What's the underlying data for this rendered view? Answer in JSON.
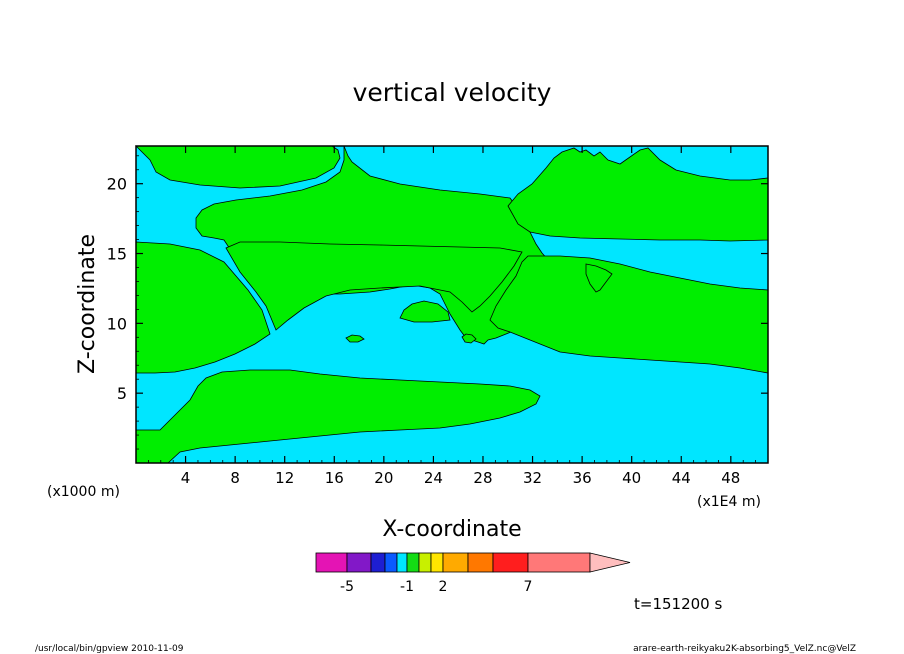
{
  "chart_data": {
    "type": "heatmap",
    "title": "vertical velocity",
    "xlabel": "X-coordinate",
    "ylabel": "Z-coordinate",
    "x_unit_left": "(x1000 m)",
    "x_unit_right": "(x1E4 m)",
    "x_ticks": [
      "4",
      "8",
      "12",
      "16",
      "20",
      "24",
      "28",
      "32",
      "36",
      "40",
      "44",
      "48"
    ],
    "y_ticks": [
      "5",
      "10",
      "15",
      "20"
    ],
    "xlim": [
      0,
      51
    ],
    "ylim": [
      0,
      22.7
    ],
    "time_label": "t=151200 s",
    "colorbar": {
      "labels": [
        {
          "text": "-5",
          "value": -5
        },
        {
          "text": "-1",
          "value": -1
        },
        {
          "text": "2",
          "value": 2
        },
        {
          "text": "7",
          "value": 7
        }
      ],
      "colors": [
        "#e414b4",
        "#8218c8",
        "#1e1ed2",
        "#0a5aff",
        "#00e6ff",
        "#14dc14",
        "#c8f000",
        "#ffe600",
        "#ffaa00",
        "#ff7800",
        "#ff1e1e",
        "#ff7878",
        "#ffbebe"
      ]
    },
    "background_color": "#00e6ff",
    "region_color": "#00ee00"
  },
  "footer": {
    "left": "/usr/local/bin/gpview  2010-11-09",
    "right": "arare-earth-reikyaku2K-absorbing5_VelZ.nc@VelZ"
  }
}
